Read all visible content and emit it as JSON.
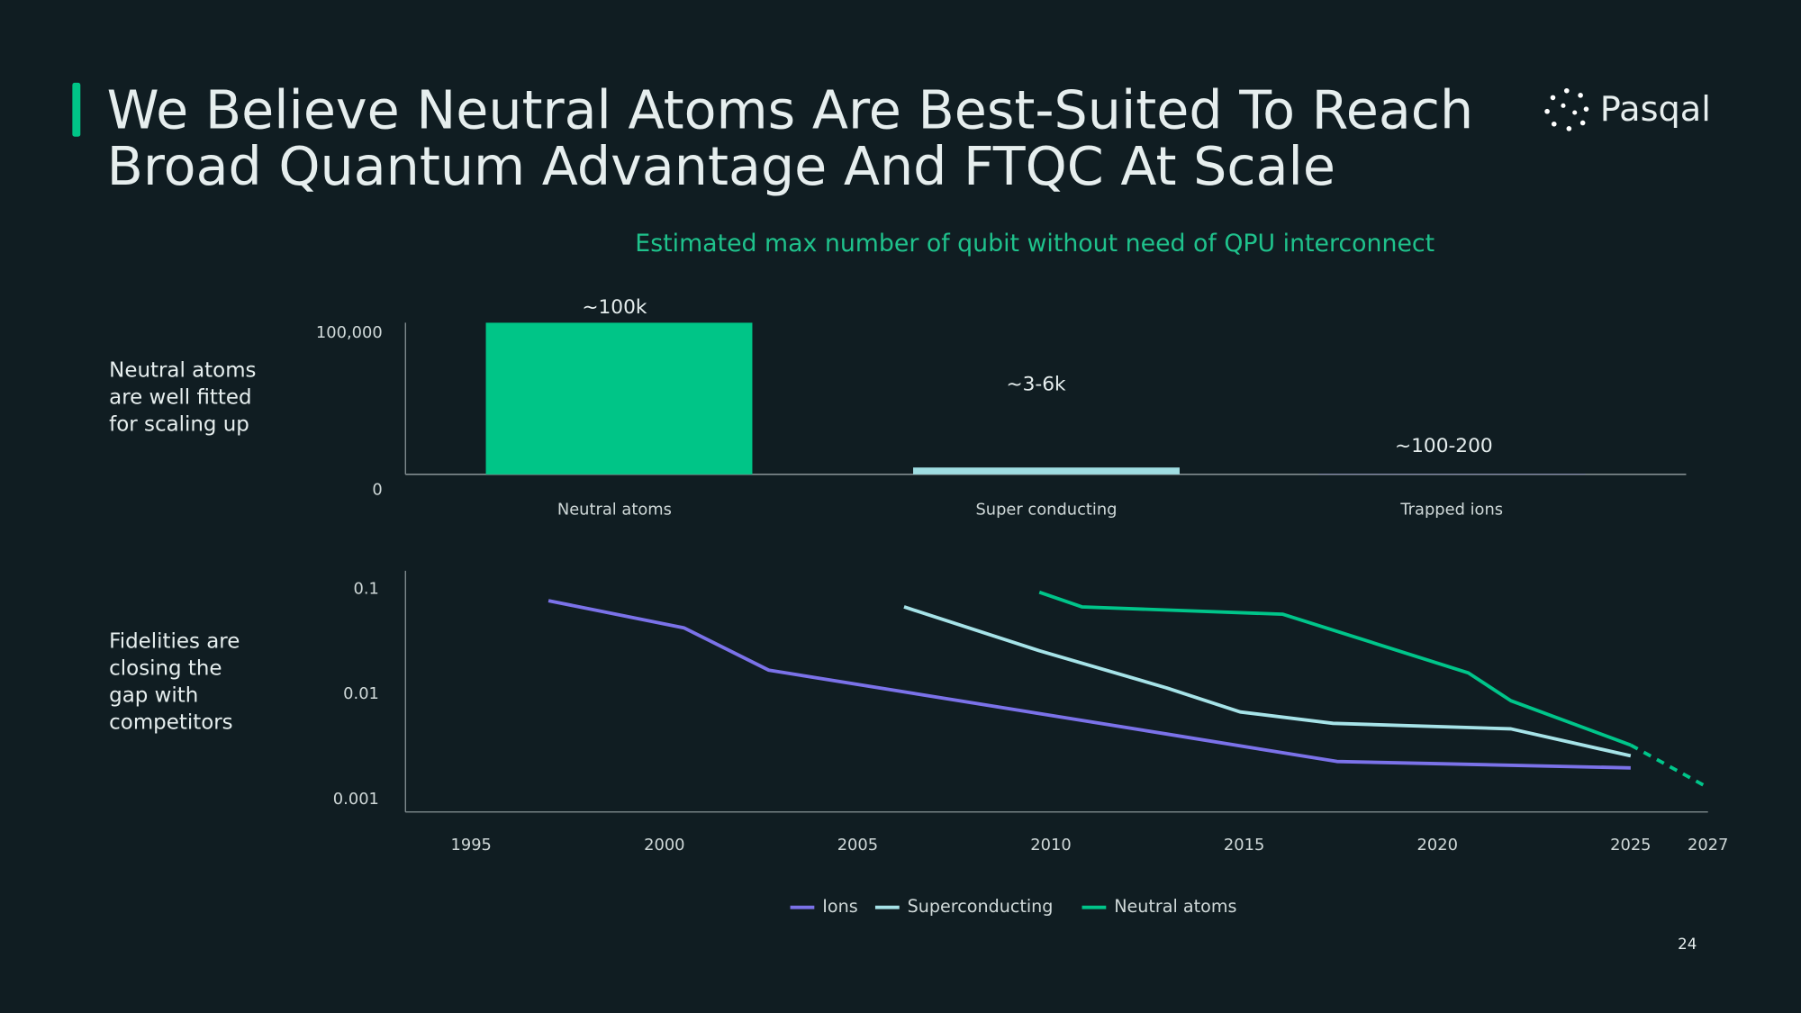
{
  "title": [
    "We Believe Neutral Atoms Are Best-Suited To Reach",
    "Broad Quantum Advantage And FTQC At Scale"
  ],
  "logo": "Pasqal",
  "page_number": "24",
  "chart_data": [
    {
      "type": "bar",
      "title": "Estimated max number of qubit without need of QPU interconnect",
      "annotation": [
        "Neutral atoms",
        "are well fitted",
        "for scaling up"
      ],
      "categories": [
        "Neutral atoms",
        "Super conducting",
        "Trapped ions"
      ],
      "values": [
        100000,
        4500,
        150
      ],
      "value_labels": [
        "~100k",
        "~3-6k",
        "~100-200"
      ],
      "colors": [
        "#00c587",
        "#9fdde2",
        "#7b72e9"
      ],
      "ylim": [
        0,
        100000
      ],
      "yticks": [
        0,
        {
          "value": 100000,
          "label": "100,000"
        }
      ],
      "grid": false
    },
    {
      "type": "line",
      "annotation": [
        "Fidelities are",
        "closing the",
        "gap with",
        "competitors"
      ],
      "log_y": true,
      "xlim": [
        1993.3,
        2027
      ],
      "xticks": [
        1995,
        2000,
        2005,
        2010,
        2015,
        2020,
        2025,
        2027
      ],
      "ylim": [
        0.00076,
        0.15
      ],
      "yticks": [
        0.1,
        0.01,
        0.001
      ],
      "grid": false,
      "legend": "bottom",
      "series": [
        {
          "name": "Ions",
          "color": "#7b72e9",
          "x": [
            1997,
            2000.5,
            2002.7,
            2013,
            2017.4,
            2025
          ],
          "values": [
            0.078,
            0.043,
            0.017,
            0.0042,
            0.0023,
            0.002
          ]
        },
        {
          "name": "Superconducting",
          "color": "#a6e3e8",
          "x": [
            2006.2,
            2009.7,
            2013,
            2014.9,
            2017.3,
            2021.9,
            2025
          ],
          "values": [
            0.068,
            0.026,
            0.0115,
            0.0068,
            0.0053,
            0.0047,
            0.0026
          ]
        },
        {
          "name": "Neutral atoms",
          "color": "#00c58a",
          "dashed_from_x": 2025,
          "x": [
            2009.7,
            2010.8,
            2016,
            2020.8,
            2021.9,
            2025,
            2027
          ],
          "values": [
            0.094,
            0.068,
            0.058,
            0.016,
            0.0087,
            0.0033,
            0.0013
          ]
        }
      ]
    }
  ]
}
